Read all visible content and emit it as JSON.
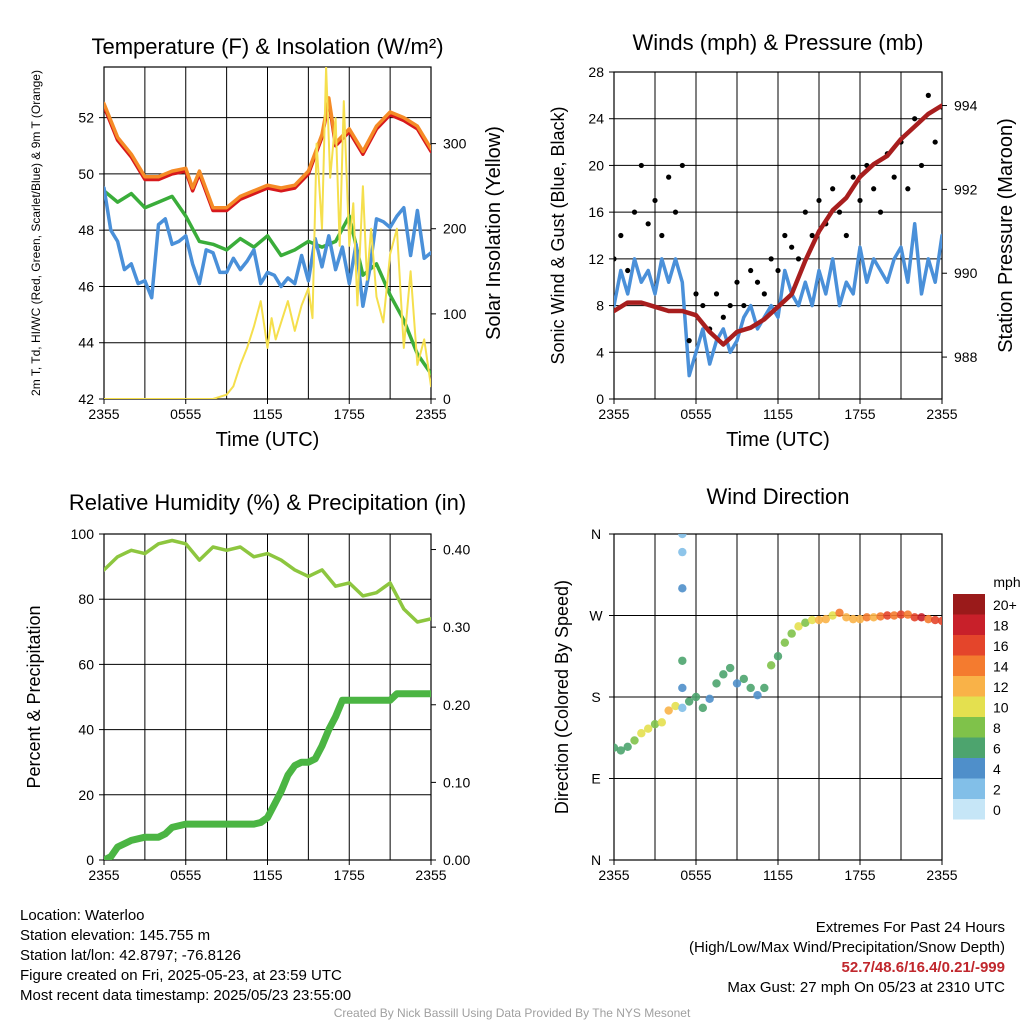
{
  "chart_data": [
    {
      "type": "line",
      "title": "Temperature (F) & Insolation (W/m²)",
      "xlabel": "Time (UTC)",
      "ylabel": "2m T, Td, HI/WC (Red, Green, Scarlet/Blue) & 9m T (Orange)",
      "ylabel_right": "Solar Insolation (Yellow)",
      "x_ticks": [
        "2355",
        "0555",
        "1155",
        "1755",
        "2355"
      ],
      "ylim": [
        42,
        53.8
      ],
      "y_ticks": [
        42,
        44,
        46,
        48,
        50,
        52
      ],
      "ylim_right": [
        0,
        390
      ],
      "y_ticks_right": [
        0,
        100,
        200,
        300
      ],
      "grid": true,
      "series": [
        {
          "axis": "left",
          "color": "#d7191c",
          "x": [
            0,
            1,
            2,
            3,
            4,
            5,
            6,
            6.5,
            7,
            8,
            9,
            10,
            11,
            12,
            13,
            14,
            15,
            16,
            16.5,
            17,
            18,
            19,
            20,
            21,
            22,
            23,
            24
          ],
          "y": [
            52.4,
            51.2,
            50.6,
            49.8,
            49.8,
            50.0,
            50.1,
            49.4,
            50.0,
            48.7,
            48.7,
            49.1,
            49.3,
            49.5,
            49.4,
            49.5,
            50.0,
            51.3,
            52.6,
            51.0,
            51.5,
            50.7,
            51.6,
            52.1,
            51.9,
            51.6,
            50.8
          ]
        },
        {
          "axis": "left",
          "color": "#f58b26",
          "x": [
            0,
            1,
            2,
            3,
            4,
            5,
            6,
            6.5,
            7,
            8,
            9,
            10,
            11,
            12,
            13,
            14,
            15,
            16,
            16.5,
            17,
            18,
            19,
            20,
            21,
            22,
            23,
            24
          ],
          "y": [
            52.5,
            51.3,
            50.7,
            49.9,
            49.9,
            50.1,
            50.2,
            49.5,
            50.1,
            48.8,
            48.8,
            49.2,
            49.4,
            49.6,
            49.5,
            49.6,
            50.1,
            51.4,
            52.7,
            51.1,
            51.6,
            50.8,
            51.7,
            52.2,
            52.0,
            51.7,
            50.9
          ]
        },
        {
          "axis": "left",
          "color": "#3aad3a",
          "x": [
            0,
            1,
            2,
            3,
            4,
            5,
            6,
            7,
            8,
            9,
            10,
            11,
            12,
            13,
            14,
            15,
            16,
            17,
            18,
            19,
            20,
            21,
            22,
            23,
            24
          ],
          "y": [
            49.4,
            49.0,
            49.3,
            48.8,
            49.0,
            49.2,
            48.5,
            47.6,
            47.5,
            47.3,
            47.7,
            47.4,
            47.8,
            47.1,
            47.3,
            47.6,
            47.4,
            47.6,
            48.5,
            46.4,
            46.8,
            45.7,
            44.8,
            43.6,
            42.9
          ]
        },
        {
          "axis": "left",
          "color": "#4a90d9",
          "x": [
            0,
            0.5,
            1,
            1.5,
            2,
            2.5,
            3,
            3.5,
            4,
            4.5,
            5,
            5.5,
            6,
            6.5,
            7,
            7.5,
            8,
            8.5,
            9,
            9.5,
            10,
            10.5,
            11,
            11.5,
            12,
            12.5,
            13,
            13.5,
            14,
            14.5,
            15,
            15.5,
            16,
            16.5,
            17,
            17.5,
            18,
            18.5,
            19,
            19.5,
            20,
            20.5,
            21,
            21.5,
            22,
            22.5,
            23,
            23.5,
            24
          ],
          "y": [
            49.5,
            48.0,
            47.6,
            46.6,
            46.8,
            46.1,
            46.2,
            45.6,
            48.2,
            48.4,
            47.5,
            47.6,
            47.8,
            46.8,
            46.1,
            47.3,
            47.2,
            46.5,
            46.5,
            47.0,
            46.6,
            46.9,
            47.3,
            46.1,
            46.5,
            46.4,
            46.0,
            46.3,
            46.1,
            47.1,
            46.2,
            47.7,
            46.7,
            47.8,
            46.6,
            47.4,
            46.1,
            47.5,
            45.3,
            46.6,
            48.4,
            48.3,
            48.1,
            48.5,
            48.8,
            47.1,
            48.7,
            47.0,
            47.2
          ]
        },
        {
          "axis": "right",
          "color": "#f5df4d",
          "x": [
            0,
            8,
            9,
            9.5,
            10,
            10.5,
            11,
            11.5,
            12,
            12.3,
            12.6,
            13,
            13.5,
            14,
            14.5,
            15,
            15.3,
            15.6,
            16,
            16.3,
            16.6,
            17,
            17.3,
            17.6,
            18,
            18.3,
            18.6,
            19,
            19.3,
            19.6,
            20,
            20.5,
            21,
            21.5,
            22,
            22.5,
            23,
            23.5,
            24
          ],
          "y": [
            0,
            0,
            5,
            15,
            40,
            60,
            85,
            115,
            60,
            95,
            70,
            90,
            115,
            80,
            110,
            130,
            95,
            300,
            200,
            390,
            260,
            330,
            180,
            350,
            180,
            230,
            110,
            250,
            140,
            200,
            120,
            90,
            170,
            200,
            60,
            150,
            40,
            70,
            15
          ]
        }
      ]
    },
    {
      "type": "line",
      "title": "Winds (mph) & Pressure (mb)",
      "xlabel": "Time (UTC)",
      "ylabel": "Sonic Wind & Gust (Blue, Black)",
      "ylabel_right": "Station Pressure (Maroon)",
      "x_ticks": [
        "2355",
        "0555",
        "1155",
        "1755",
        "2355"
      ],
      "ylim": [
        0,
        28
      ],
      "y_ticks": [
        0,
        4,
        8,
        12,
        16,
        20,
        24,
        28
      ],
      "ylim_right": [
        987,
        994.8
      ],
      "y_ticks_right": [
        988,
        990,
        992,
        994
      ],
      "grid": true,
      "series": [
        {
          "name": "Sonic Wind",
          "axis": "left",
          "color": "#4a90d9",
          "x": [
            0,
            0.5,
            1,
            1.5,
            2,
            2.5,
            3,
            3.5,
            4,
            4.5,
            5,
            5.5,
            6,
            6.5,
            7,
            7.5,
            8,
            8.5,
            9,
            9.5,
            10,
            10.5,
            11,
            11.5,
            12,
            12.5,
            13,
            13.5,
            14,
            14.5,
            15,
            15.5,
            16,
            16.5,
            17,
            17.5,
            18,
            18.5,
            19,
            19.5,
            20,
            20.5,
            21,
            21.5,
            22,
            22.5,
            23,
            23.5,
            24
          ],
          "y": [
            8,
            11,
            9,
            12,
            10,
            11,
            9,
            12,
            10,
            12,
            10,
            2,
            4,
            6,
            3,
            5,
            6,
            4,
            5,
            7,
            8,
            6,
            7,
            8,
            7,
            11,
            9,
            8,
            10,
            8,
            11,
            9,
            12,
            8,
            10,
            9,
            13,
            10,
            12,
            11,
            10,
            12,
            13,
            10,
            15,
            9,
            12,
            10,
            14
          ]
        },
        {
          "name": "Gust",
          "axis": "left",
          "color": "#000000",
          "style": "dots",
          "x": [
            0,
            0.5,
            1,
            1.5,
            2,
            2.5,
            3,
            3.5,
            4,
            4.5,
            5,
            5.5,
            6,
            6.5,
            7,
            7.5,
            8,
            8.5,
            9,
            9.5,
            10,
            10.5,
            11,
            11.5,
            12,
            12.5,
            13,
            13.5,
            14,
            14.5,
            15,
            15.5,
            16,
            16.5,
            17,
            17.5,
            18,
            18.5,
            19,
            19.5,
            20,
            20.5,
            21,
            21.5,
            22,
            22.5,
            23,
            23.5,
            24
          ],
          "y": [
            12,
            14,
            11,
            16,
            20,
            15,
            17,
            14,
            19,
            16,
            20,
            5,
            9,
            8,
            6,
            9,
            7,
            8,
            10,
            8,
            11,
            10,
            9,
            12,
            11,
            14,
            13,
            12,
            16,
            14,
            17,
            15,
            18,
            16,
            14,
            19,
            17,
            20,
            18,
            16,
            21,
            19,
            22,
            18,
            24,
            20,
            26,
            22,
            25
          ]
        },
        {
          "name": "Pressure",
          "axis": "right",
          "color": "#a81e1e",
          "x": [
            0,
            1,
            2,
            3,
            4,
            5,
            6,
            7,
            8,
            9,
            10,
            11,
            12,
            13,
            14,
            15,
            16,
            17,
            18,
            19,
            20,
            21,
            22,
            23,
            24
          ],
          "y": [
            989.1,
            989.3,
            989.3,
            989.2,
            989.1,
            989.1,
            989.0,
            988.6,
            988.3,
            988.6,
            988.7,
            988.9,
            989.2,
            989.5,
            990.3,
            991.0,
            991.5,
            991.8,
            992.3,
            992.6,
            992.8,
            993.2,
            993.5,
            993.8,
            994.0
          ]
        }
      ]
    },
    {
      "type": "line",
      "title": "Relative Humidity (%) & Precipitation (in)",
      "ylabel": "Percent & Precipitation",
      "x_ticks": [
        "2355",
        "0555",
        "1155",
        "1755",
        "2355"
      ],
      "ylim": [
        0,
        100
      ],
      "y_ticks": [
        0,
        20,
        40,
        60,
        80,
        100
      ],
      "ylim_right": [
        0,
        0.42
      ],
      "y_ticks_right": [
        "0.00",
        "0.10",
        "0.20",
        "0.30",
        "0.40"
      ],
      "grid": true,
      "series": [
        {
          "axis": "left",
          "color": "#8dc63f",
          "x": [
            0,
            1,
            2,
            3,
            4,
            5,
            6,
            7,
            8,
            9,
            10,
            11,
            12,
            13,
            14,
            15,
            16,
            17,
            18,
            19,
            20,
            21,
            22,
            23,
            24
          ],
          "y": [
            89,
            93,
            95,
            94,
            97,
            98,
            97,
            92,
            96,
            95,
            96,
            93,
            94,
            92,
            89,
            87,
            89,
            84,
            85,
            81,
            82,
            85,
            77,
            73,
            74
          ]
        },
        {
          "axis": "left",
          "color": "#4bb543",
          "x": [
            0,
            0.5,
            1,
            2,
            3,
            4,
            4.5,
            5,
            6,
            7,
            8,
            9,
            10,
            11,
            11.5,
            12,
            12.5,
            13,
            13.5,
            14,
            14.5,
            15,
            15.5,
            16,
            16.5,
            17,
            17.5,
            18,
            19,
            20,
            21,
            21.5,
            22,
            23,
            24
          ],
          "y": [
            0,
            1,
            4,
            6,
            7,
            7,
            8,
            10,
            11,
            11,
            11,
            11,
            11,
            11,
            11.5,
            13,
            17,
            21,
            26,
            29,
            30,
            30,
            31,
            35,
            40,
            44,
            49,
            49,
            49,
            49,
            49,
            51,
            51,
            51,
            51
          ]
        }
      ]
    },
    {
      "type": "scatter",
      "title": "Wind Direction",
      "ylabel": "Direction (Colored By Speed)",
      "x_ticks": [
        "2355",
        "0555",
        "1155",
        "1755",
        "2355"
      ],
      "y_ticks": [
        "N",
        "E",
        "S",
        "W",
        "N"
      ],
      "ylim": [
        0,
        360
      ],
      "grid": true,
      "legend": {
        "title": "mph",
        "position": "right",
        "labels": [
          "20+",
          "18",
          "16",
          "14",
          "12",
          "10",
          "8",
          "6",
          "4",
          "2",
          "0"
        ]
      },
      "colorscale": [
        "#c6e6f7",
        "#82bfe8",
        "#4f8fca",
        "#4da46e",
        "#7fc24a",
        "#e4e04f",
        "#f9b248",
        "#f47b2f",
        "#e4452b",
        "#c8202a",
        "#9a1a1a"
      ],
      "x": [
        0,
        0.5,
        1,
        1.5,
        2,
        2.5,
        3,
        3.5,
        4,
        4.5,
        5,
        5,
        5,
        5,
        5,
        5,
        5.5,
        6,
        6.5,
        7,
        7.5,
        8,
        8.5,
        9,
        9.5,
        10,
        10.5,
        11,
        11.5,
        12,
        12.5,
        13,
        13.5,
        14,
        14.5,
        15,
        15.5,
        16,
        16.5,
        17,
        17.5,
        18,
        18.5,
        19,
        19.5,
        20,
        20.5,
        21,
        21.5,
        22,
        22.5,
        23,
        23.5,
        24
      ],
      "y": [
        124,
        121,
        125,
        132,
        140,
        145,
        150,
        152,
        165,
        170,
        360,
        340,
        300,
        220,
        190,
        168,
        175,
        180,
        168,
        178,
        195,
        205,
        212,
        195,
        200,
        190,
        182,
        190,
        215,
        225,
        240,
        250,
        258,
        262,
        265,
        265,
        266,
        270,
        273,
        268,
        266,
        266,
        268,
        268,
        269,
        270,
        270,
        271,
        271,
        268,
        268,
        266,
        265,
        264
      ],
      "speed": [
        6,
        5,
        6,
        7,
        9,
        10,
        8,
        9,
        11,
        10,
        2,
        1,
        4,
        6,
        3,
        2,
        5,
        6,
        5,
        4,
        5,
        6,
        5,
        4,
        5,
        5,
        4,
        6,
        7,
        6,
        8,
        7,
        9,
        8,
        10,
        11,
        12,
        10,
        13,
        12,
        11,
        12,
        14,
        12,
        13,
        15,
        14,
        16,
        14,
        15,
        17,
        14,
        15,
        16
      ]
    }
  ],
  "info": {
    "location": "Location: Waterloo",
    "elevation": "Station elevation: 145.755 m",
    "latlon": "Station lat/lon: 42.8797; -76.8126",
    "created": "Figure created on Fri, 2025-05-23, at 23:59 UTC",
    "recent": "Most recent data timestamp: 2025/05/23 23:55:00"
  },
  "extremes": {
    "title": "Extremes For Past 24 Hours",
    "subtitle": "(High/Low/Max Wind/Precipitation/Snow Depth)",
    "values": "52.7/48.6/16.4/0.21/-999",
    "gust": "Max Gust: 27 mph On 05/23 at 2310 UTC"
  },
  "credit": "Created By Nick Bassill Using Data Provided By The NYS Mesonet"
}
